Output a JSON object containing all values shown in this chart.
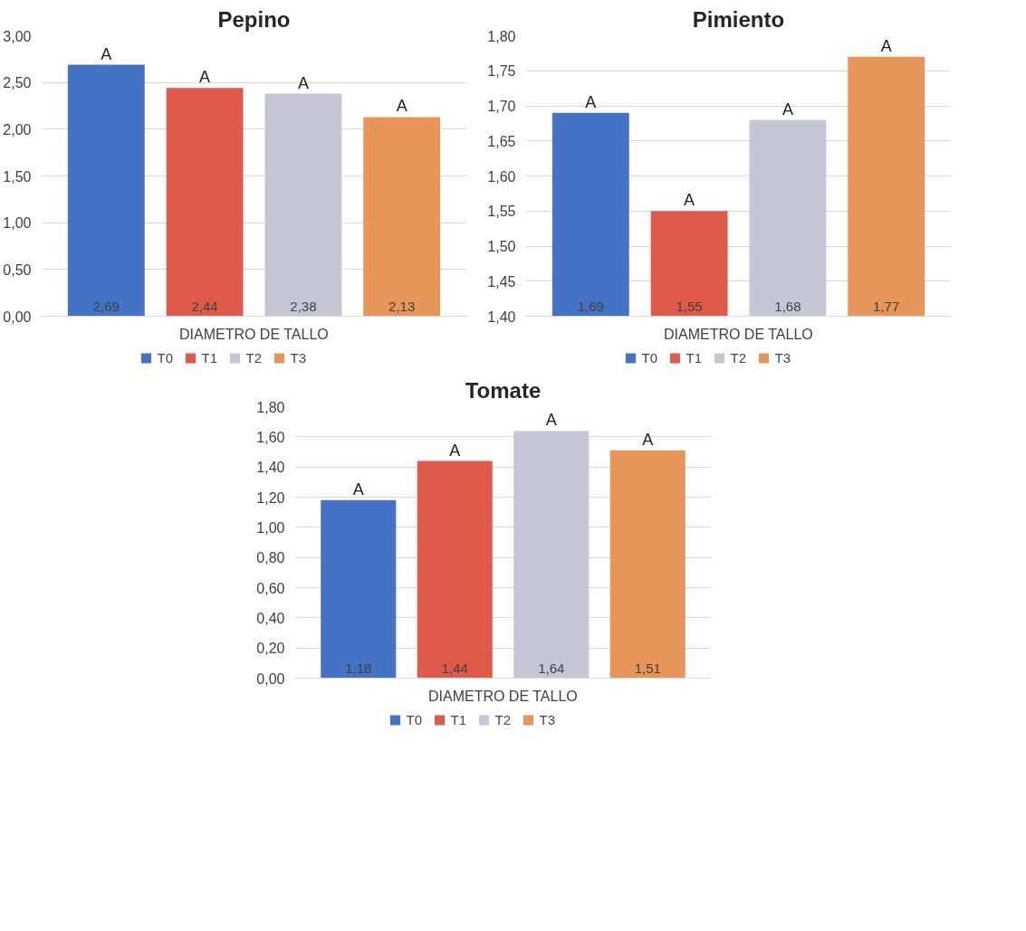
{
  "chart_data": [
    {
      "type": "bar",
      "title": "Pepino",
      "categories": [
        "DIAMETRO DE TALLO"
      ],
      "ylim": [
        0,
        3
      ],
      "yticks": [
        {
          "value": 0,
          "label": "0,00"
        },
        {
          "value": 0.5,
          "label": "0,50"
        },
        {
          "value": 1,
          "label": "1,00"
        },
        {
          "value": 1.5,
          "label": "1,50"
        },
        {
          "value": 2,
          "label": "2,00"
        },
        {
          "value": 2.5,
          "label": "2,50"
        },
        {
          "value": 3,
          "label": "3,00"
        }
      ],
      "grid": "y",
      "legend": "bottom",
      "series": [
        {
          "name": "T0",
          "color": "#4472c4",
          "values": [
            2.69
          ],
          "value_labels": [
            "2,69"
          ]
        },
        {
          "name": "T1",
          "color": "#e05a4b",
          "values": [
            2.44
          ],
          "value_labels": [
            "2,44"
          ]
        },
        {
          "name": "T2",
          "color": "#c5c7d6",
          "values": [
            2.38
          ],
          "value_labels": [
            "2,38"
          ]
        },
        {
          "name": "T3",
          "color": "#e8955a",
          "values": [
            2.13
          ],
          "value_labels": [
            "2,13"
          ]
        }
      ],
      "annotations": [
        "A",
        "A",
        "A",
        "A"
      ]
    },
    {
      "type": "bar",
      "title": "Pimiento",
      "categories": [
        "DIAMETRO DE TALLO"
      ],
      "ylim": [
        1.4,
        1.8
      ],
      "yticks": [
        {
          "value": 1.4,
          "label": "1,40"
        },
        {
          "value": 1.45,
          "label": "1,45"
        },
        {
          "value": 1.5,
          "label": "1,50"
        },
        {
          "value": 1.55,
          "label": "1,55"
        },
        {
          "value": 1.6,
          "label": "1,60"
        },
        {
          "value": 1.65,
          "label": "1,65"
        },
        {
          "value": 1.7,
          "label": "1,70"
        },
        {
          "value": 1.75,
          "label": "1,75"
        },
        {
          "value": 1.8,
          "label": "1,80"
        }
      ],
      "grid": "y",
      "legend": "bottom",
      "series": [
        {
          "name": "T0",
          "color": "#4472c4",
          "values": [
            1.69
          ],
          "value_labels": [
            "1,69"
          ]
        },
        {
          "name": "T1",
          "color": "#e05a4b",
          "values": [
            1.55
          ],
          "value_labels": [
            "1,55"
          ]
        },
        {
          "name": "T2",
          "color": "#c5c7d6",
          "values": [
            1.68
          ],
          "value_labels": [
            "1,68"
          ]
        },
        {
          "name": "T3",
          "color": "#e8955a",
          "values": [
            1.77
          ],
          "value_labels": [
            "1,77"
          ]
        }
      ],
      "annotations": [
        "A",
        "A",
        "A",
        "A"
      ]
    },
    {
      "type": "bar",
      "title": "Tomate",
      "categories": [
        "DIAMETRO DE TALLO"
      ],
      "ylim": [
        0,
        1.8
      ],
      "yticks": [
        {
          "value": 0,
          "label": "0,00"
        },
        {
          "value": 0.2,
          "label": "0,20"
        },
        {
          "value": 0.4,
          "label": "0,40"
        },
        {
          "value": 0.6,
          "label": "0,60"
        },
        {
          "value": 0.8,
          "label": "0,80"
        },
        {
          "value": 1,
          "label": "1,00"
        },
        {
          "value": 1.2,
          "label": "1,20"
        },
        {
          "value": 1.4,
          "label": "1,40"
        },
        {
          "value": 1.6,
          "label": "1,60"
        },
        {
          "value": 1.8,
          "label": "1,80"
        }
      ],
      "grid": "y",
      "legend": "bottom",
      "series": [
        {
          "name": "T0",
          "color": "#4472c4",
          "values": [
            1.18
          ],
          "value_labels": [
            "1,18"
          ]
        },
        {
          "name": "T1",
          "color": "#e05a4b",
          "values": [
            1.44
          ],
          "value_labels": [
            "1,44"
          ]
        },
        {
          "name": "T2",
          "color": "#c5c7d6",
          "values": [
            1.64
          ],
          "value_labels": [
            "1,64"
          ]
        },
        {
          "name": "T3",
          "color": "#e8955a",
          "values": [
            1.51
          ],
          "value_labels": [
            "1,51"
          ]
        }
      ],
      "annotations": [
        "A",
        "A",
        "A",
        "A"
      ]
    }
  ]
}
